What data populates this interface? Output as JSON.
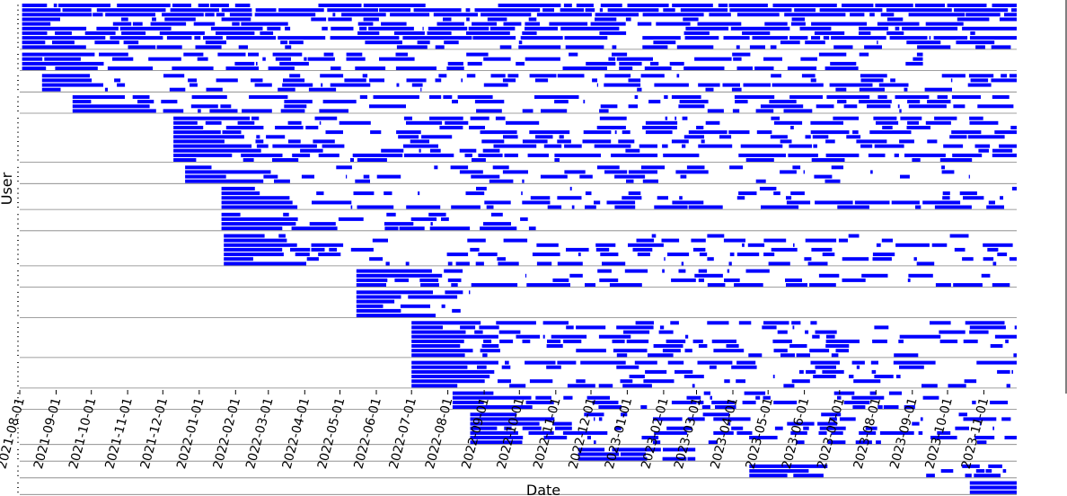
{
  "chart_data": {
    "type": "timeline",
    "title": "",
    "xlabel": "Date",
    "ylabel": "User",
    "xlim": [
      "2021-08-01",
      "2023-11-29"
    ],
    "x_ticks": [
      "2021-08-01",
      "2021-09-01",
      "2021-10-01",
      "2021-11-01",
      "2021-12-01",
      "2022-01-01",
      "2022-02-01",
      "2022-03-01",
      "2022-04-01",
      "2022-05-01",
      "2022-06-01",
      "2022-07-01",
      "2022-08-01",
      "2022-09-01",
      "2022-10-01",
      "2022-11-01",
      "2022-12-01",
      "2023-01-01",
      "2023-02-01",
      "2023-03-01",
      "2023-04-01",
      "2023-05-01",
      "2023-06-01",
      "2023-07-01",
      "2023-08-01",
      "2023-09-01",
      "2023-10-01",
      "2023-11-01"
    ],
    "bar_color": "#0000ff",
    "separator_color": "#808080",
    "grid": false,
    "legend": "none",
    "user_groups": [
      {
        "first_active": "2021-08-03",
        "last_active": "2023-11-29",
        "users": 10,
        "density": 0.7
      },
      {
        "first_active": "2021-08-03",
        "last_active": "2023-09-10",
        "users": 4,
        "density": 0.6
      },
      {
        "first_active": "2021-08-20",
        "last_active": "2023-11-29",
        "users": 4,
        "density": 0.5
      },
      {
        "first_active": "2021-09-15",
        "last_active": "2023-11-29",
        "users": 4,
        "density": 0.5
      },
      {
        "first_active": "2021-12-10",
        "last_active": "2023-11-29",
        "users": 10,
        "density": 0.55
      },
      {
        "first_active": "2021-12-20",
        "last_active": "2023-10-20",
        "users": 4,
        "density": 0.45
      },
      {
        "first_active": "2022-01-20",
        "last_active": "2023-11-29",
        "users": 5,
        "density": 0.4
      },
      {
        "first_active": "2022-01-20",
        "last_active": "2022-10-15",
        "users": 4,
        "density": 0.45
      },
      {
        "first_active": "2022-01-22",
        "last_active": "2023-11-29",
        "users": 7,
        "density": 0.4
      },
      {
        "first_active": "2022-05-15",
        "last_active": "2023-11-29",
        "users": 4,
        "density": 0.45
      },
      {
        "first_active": "2022-05-15",
        "last_active": "2022-08-20",
        "users": 6,
        "density": 0.5
      },
      {
        "first_active": "2022-07-01",
        "last_active": "2023-11-29",
        "users": 8,
        "density": 0.45
      },
      {
        "first_active": "2022-07-01",
        "last_active": "2023-11-29",
        "users": 6,
        "density": 0.45
      },
      {
        "first_active": "2022-08-05",
        "last_active": "2023-11-29",
        "users": 4,
        "density": 0.4
      },
      {
        "first_active": "2022-08-20",
        "last_active": "2023-11-29",
        "users": 7,
        "density": 0.45
      },
      {
        "first_active": "2022-11-20",
        "last_active": "2023-02-28",
        "users": 3,
        "density": 0.5
      },
      {
        "first_active": "2023-04-15",
        "last_active": "2023-11-20",
        "users": 3,
        "density": 0.35
      },
      {
        "first_active": "2023-10-20",
        "last_active": "2023-11-29",
        "users": 3,
        "density": 0.95
      }
    ]
  }
}
